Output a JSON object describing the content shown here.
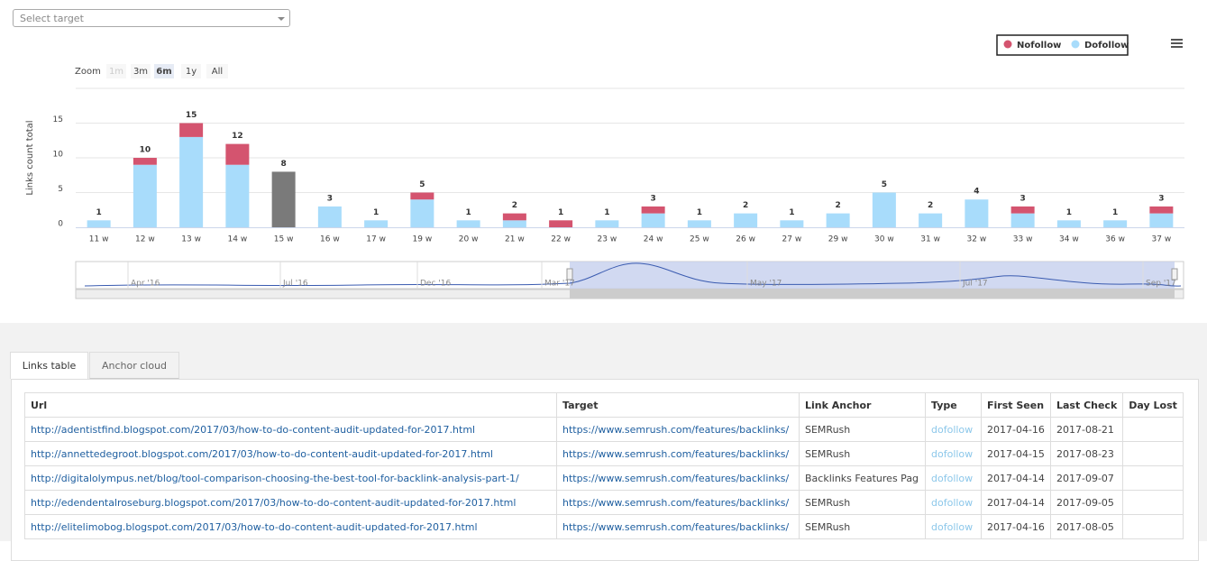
{
  "select_placeholder": "Select target",
  "zoom": {
    "label": "Zoom",
    "options": [
      "1m",
      "3m",
      "6m",
      "1y",
      "All"
    ]
  },
  "chart_data": {
    "type": "stacked_bar",
    "y_axis_label": "Links count total",
    "categories": [
      "11 w",
      "12 w",
      "13 w",
      "14 w",
      "15 w",
      "16 w",
      "17 w",
      "19 w",
      "20 w",
      "21 w",
      "22 w",
      "23 w",
      "24 w",
      "25 w",
      "26 w",
      "27 w",
      "29 w",
      "30 w",
      "31 w",
      "32 w",
      "33 w",
      "34 w",
      "36 w",
      "37 w"
    ],
    "series": [
      {
        "name": "Dofollow",
        "color": "#a8dcfb",
        "values": [
          1,
          9,
          13,
          9,
          8,
          3,
          1,
          4,
          1,
          1,
          0,
          1,
          2,
          1,
          2,
          1,
          2,
          5,
          2,
          4,
          2,
          1,
          1,
          2
        ]
      },
      {
        "name": "Nofollow",
        "color": "#d4546f",
        "values": [
          0,
          1,
          2,
          3,
          0,
          0,
          0,
          1,
          0,
          1,
          1,
          0,
          1,
          0,
          0,
          0,
          0,
          0,
          0,
          0,
          1,
          0,
          0,
          1
        ]
      }
    ],
    "totals": [
      1,
      10,
      15,
      12,
      8,
      3,
      1,
      5,
      1,
      2,
      1,
      1,
      3,
      1,
      2,
      1,
      2,
      5,
      2,
      4,
      3,
      1,
      1,
      3
    ],
    "highlight_index": 4,
    "highlight_color": "#7a7a7a",
    "ylim": [
      0,
      20
    ],
    "yticks": [
      0,
      5,
      10,
      15
    ],
    "grid": true,
    "legend": "top-right",
    "navigator_labels": [
      "Apr '16",
      "Jul '16",
      "Dec '16",
      "Mar '17",
      "May '17",
      "Jul '17",
      "Sep '17"
    ]
  },
  "tabs": [
    "Links table",
    "Anchor cloud"
  ],
  "table": {
    "columns": [
      "Url",
      "Target",
      "Link Anchor",
      "Type",
      "First Seen",
      "Last Check",
      "Day Lost"
    ],
    "rows": [
      [
        "http://adentistfind.blogspot.com/2017/03/how-to-do-content-audit-updated-for-2017.html",
        "https://www.semrush.com/features/backlinks/",
        "SEMRush",
        "dofollow",
        "2017-04-16",
        "2017-08-21"
      ],
      [
        "http://annettedegroot.blogspot.com/2017/03/how-to-do-content-audit-updated-for-2017.html",
        "https://www.semrush.com/features/backlinks/",
        "SEMRush",
        "dofollow",
        "2017-04-15",
        "2017-08-23"
      ],
      [
        "http://digitalolympus.net/blog/tool-comparison-choosing-the-best-tool-for-backlink-analysis-part-1/",
        "https://www.semrush.com/features/backlinks/",
        "Backlinks Features Pag",
        "dofollow",
        "2017-04-14",
        "2017-09-07"
      ],
      [
        "http://edendentalroseburg.blogspot.com/2017/03/how-to-do-content-audit-updated-for-2017.html",
        "https://www.semrush.com/features/backlinks/",
        "SEMRush",
        "dofollow",
        "2017-04-14",
        "2017-09-05"
      ],
      [
        "http://elitelimobog.blogspot.com/2017/03/how-to-do-content-audit-updated-for-2017.html",
        "https://www.semrush.com/features/backlinks/",
        "SEMRush",
        "dofollow",
        "2017-04-16",
        "2017-08-05"
      ]
    ]
  }
}
